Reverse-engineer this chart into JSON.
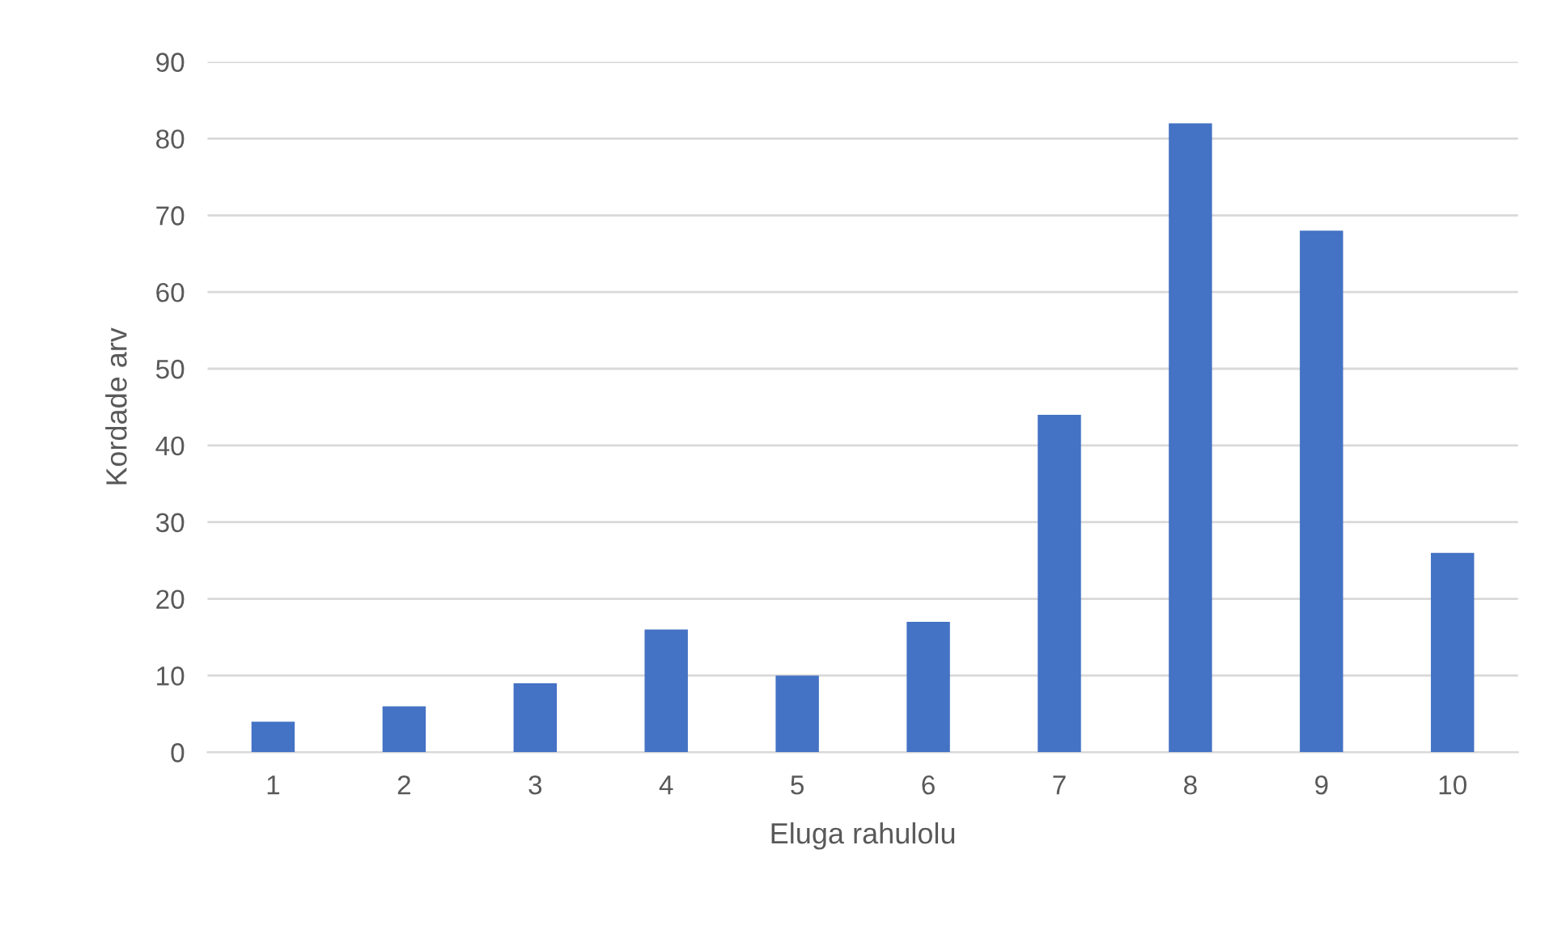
{
  "chart_data": {
    "type": "bar",
    "xlabel": "Eluga rahulolu",
    "ylabel": "Kordade arv",
    "categories": [
      "1",
      "2",
      "3",
      "4",
      "5",
      "6",
      "7",
      "8",
      "9",
      "10"
    ],
    "values": [
      4,
      6,
      9,
      16,
      10,
      17,
      44,
      82,
      68,
      26
    ],
    "color": "#4472c4",
    "ylim": [
      0,
      90
    ],
    "yticks": [
      0,
      10,
      20,
      30,
      40,
      50,
      60,
      70,
      80,
      90
    ],
    "grid": "y",
    "legend": false
  }
}
